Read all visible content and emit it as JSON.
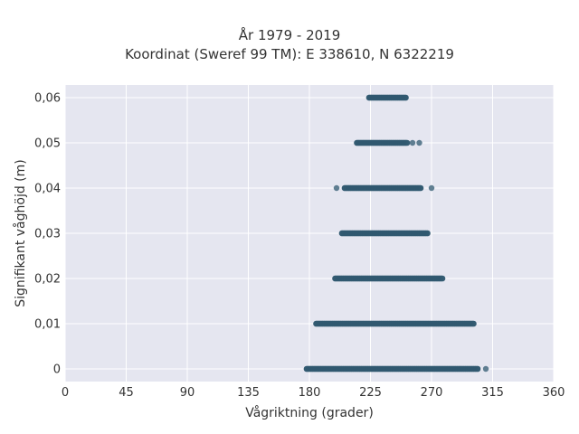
{
  "chart_data": {
    "type": "scatter",
    "title": "År 1979 - 2019",
    "subtitle": "Koordinat (Sweref 99 TM): E 338610, N 6322219",
    "xlabel": "Vågriktning (grader)",
    "ylabel": "Signifikant våghöjd (m)",
    "xlim": [
      0,
      360
    ],
    "ylim": [
      -0.0028,
      0.0628
    ],
    "x_ticks": [
      0,
      45,
      90,
      135,
      180,
      225,
      270,
      315,
      360
    ],
    "x_tick_labels": [
      "0",
      "45",
      "90",
      "135",
      "180",
      "225",
      "270",
      "315",
      "360"
    ],
    "y_ticks": [
      0,
      0.01,
      0.02,
      0.03,
      0.04,
      0.05,
      0.06
    ],
    "y_tick_labels": [
      "0",
      "0,01",
      "0,02",
      "0,03",
      "0,04",
      "0,05",
      "0,06"
    ],
    "grid": true,
    "marker_color": "#2f5870",
    "background_color": "#e5e6f0",
    "bands": [
      {
        "y": 0.0,
        "x_min": 178,
        "x_max": 304,
        "outliers": [
          310
        ]
      },
      {
        "y": 0.01,
        "x_min": 185,
        "x_max": 301,
        "outliers": []
      },
      {
        "y": 0.02,
        "x_min": 199,
        "x_max": 278,
        "outliers": []
      },
      {
        "y": 0.03,
        "x_min": 204,
        "x_max": 267,
        "outliers": []
      },
      {
        "y": 0.04,
        "x_min": 206,
        "x_max": 262,
        "outliers": [
          200,
          270
        ]
      },
      {
        "y": 0.05,
        "x_min": 215,
        "x_max": 252,
        "outliers": [
          256,
          261
        ]
      },
      {
        "y": 0.06,
        "x_min": 224,
        "x_max": 251,
        "outliers": []
      }
    ]
  }
}
